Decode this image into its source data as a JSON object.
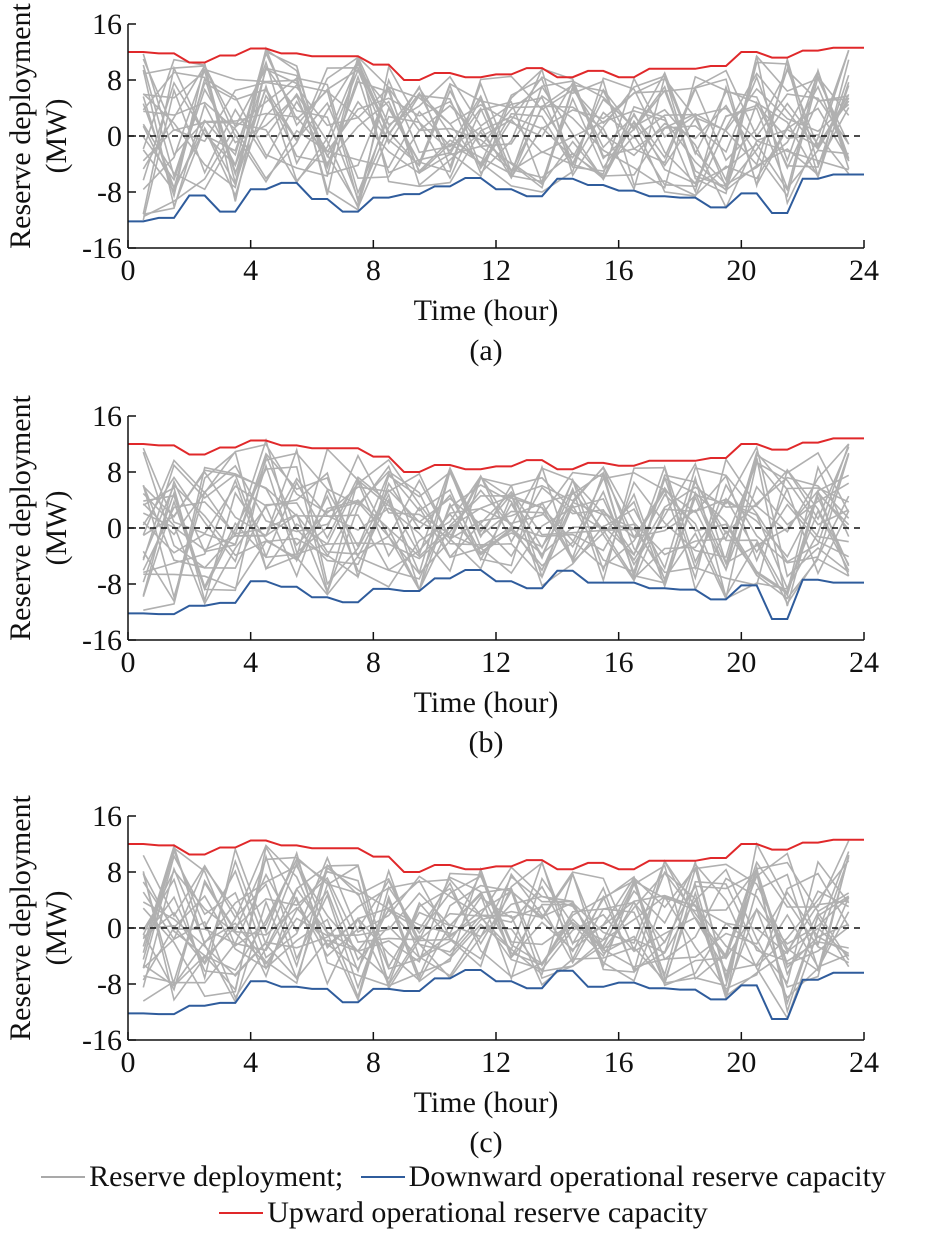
{
  "colors": {
    "deployment": "#b0b0b0",
    "downward": "#2f5c9c",
    "upward": "#e0282a",
    "zero_line": "#111111"
  },
  "legend": {
    "deployment_label": "Reserve deployment;",
    "downward_label": "Downward operational reserve capacity",
    "upward_label": "Upward operational reserve capacity"
  },
  "chart_data": [
    {
      "type": "line",
      "caption": "(a)",
      "xlabel": "Time (hour)",
      "ylabel_line1": "Reserve deployment",
      "ylabel_line2": "(MW)",
      "xlim": [
        0,
        24
      ],
      "ylim": [
        -16,
        16
      ],
      "xticks": [
        0,
        4,
        8,
        12,
        16,
        20,
        24
      ],
      "yticks": [
        -16,
        -8,
        0,
        8,
        16
      ],
      "upward_capacity": {
        "x": [
          0,
          0.5,
          1,
          1.5,
          2,
          2.5,
          3,
          3.5,
          4,
          4.5,
          5,
          5.5,
          6,
          6.5,
          7,
          7.5,
          8,
          8.5,
          9,
          9.5,
          10,
          10.5,
          11,
          11.5,
          12,
          12.5,
          13,
          13.5,
          14,
          14.5,
          15,
          15.5,
          16,
          16.5,
          17,
          17.5,
          18,
          18.5,
          19,
          19.5,
          20,
          20.5,
          21,
          21.5,
          22,
          22.5,
          23,
          23.5,
          24
        ],
        "y": [
          12,
          12,
          11.8,
          11.8,
          10.5,
          10.5,
          11.5,
          11.5,
          12.5,
          12.5,
          11.8,
          11.8,
          11.4,
          11.4,
          11.4,
          11.4,
          10.2,
          10.2,
          8,
          8,
          9,
          9,
          8.4,
          8.4,
          8.8,
          8.8,
          9.7,
          9.7,
          8.4,
          8.4,
          9.3,
          9.3,
          8.4,
          8.4,
          9.6,
          9.6,
          9.6,
          9.6,
          10,
          10,
          12,
          12,
          11.2,
          11.2,
          12.2,
          12.2,
          12.6,
          12.6,
          12.6
        ]
      },
      "downward_capacity": {
        "x": [
          0,
          0.5,
          1,
          1.5,
          2,
          2.5,
          3,
          3.5,
          4,
          4.5,
          5,
          5.5,
          6,
          6.5,
          7,
          7.5,
          8,
          8.5,
          9,
          9.5,
          10,
          10.5,
          11,
          11.5,
          12,
          12.5,
          13,
          13.5,
          14,
          14.5,
          15,
          15.5,
          16,
          16.5,
          17,
          17.5,
          18,
          18.5,
          19,
          19.5,
          20,
          20.5,
          21,
          21.5,
          22,
          22.5,
          23,
          23.5,
          24
        ],
        "y": [
          -12.2,
          -12.2,
          -11.7,
          -11.7,
          -8.5,
          -8.5,
          -10.8,
          -10.8,
          -7.6,
          -7.6,
          -6.7,
          -6.7,
          -9,
          -9,
          -10.8,
          -10.8,
          -8.8,
          -8.8,
          -8.3,
          -8.3,
          -7.2,
          -7.2,
          -6,
          -6,
          -7.6,
          -7.6,
          -8.6,
          -8.6,
          -6.1,
          -6.1,
          -7,
          -7,
          -7.8,
          -7.8,
          -8.6,
          -8.6,
          -8.8,
          -8.8,
          -10.2,
          -10.2,
          -8.2,
          -8.2,
          -11,
          -11,
          -6.1,
          -6.1,
          -5.5,
          -5.5,
          -5.5
        ]
      }
    },
    {
      "type": "line",
      "caption": "(b)",
      "xlabel": "Time (hour)",
      "ylabel_line1": "Reserve deployment",
      "ylabel_line2": "(MW)",
      "xlim": [
        0,
        24
      ],
      "ylim": [
        -16,
        16
      ],
      "xticks": [
        0,
        4,
        8,
        12,
        16,
        20,
        24
      ],
      "yticks": [
        -16,
        -8,
        0,
        8,
        16
      ],
      "upward_capacity": {
        "x": [
          0,
          0.5,
          1,
          1.5,
          2,
          2.5,
          3,
          3.5,
          4,
          4.5,
          5,
          5.5,
          6,
          6.5,
          7,
          7.5,
          8,
          8.5,
          9,
          9.5,
          10,
          10.5,
          11,
          11.5,
          12,
          12.5,
          13,
          13.5,
          14,
          14.5,
          15,
          15.5,
          16,
          16.5,
          17,
          17.5,
          18,
          18.5,
          19,
          19.5,
          20,
          20.5,
          21,
          21.5,
          22,
          22.5,
          23,
          23.5,
          24
        ],
        "y": [
          12,
          12,
          11.8,
          11.8,
          10.5,
          10.5,
          11.5,
          11.5,
          12.5,
          12.5,
          11.8,
          11.8,
          11.4,
          11.4,
          11.4,
          11.4,
          10.2,
          10.2,
          8,
          8,
          9,
          9,
          8.4,
          8.4,
          8.8,
          8.8,
          9.7,
          9.7,
          8.4,
          8.4,
          9.3,
          9.3,
          8.9,
          8.9,
          9.6,
          9.6,
          9.6,
          9.6,
          10,
          10,
          12,
          12,
          11.2,
          11.2,
          12.2,
          12.2,
          12.8,
          12.8,
          12.8
        ]
      },
      "downward_capacity": {
        "x": [
          0,
          0.5,
          1,
          1.5,
          2,
          2.5,
          3,
          3.5,
          4,
          4.5,
          5,
          5.5,
          6,
          6.5,
          7,
          7.5,
          8,
          8.5,
          9,
          9.5,
          10,
          10.5,
          11,
          11.5,
          12,
          12.5,
          13,
          13.5,
          14,
          14.5,
          15,
          15.5,
          16,
          16.5,
          17,
          17.5,
          18,
          18.5,
          19,
          19.5,
          20,
          20.5,
          21,
          21.5,
          22,
          22.5,
          23,
          23.5,
          24
        ],
        "y": [
          -12.2,
          -12.2,
          -12.3,
          -12.3,
          -11.1,
          -11.1,
          -10.7,
          -10.7,
          -7.6,
          -7.6,
          -8.4,
          -8.4,
          -9.9,
          -9.9,
          -10.6,
          -10.6,
          -8.7,
          -8.7,
          -9,
          -9,
          -7.2,
          -7.2,
          -6,
          -6,
          -7.6,
          -7.6,
          -8.6,
          -8.6,
          -6.1,
          -6.1,
          -7.8,
          -7.8,
          -7.8,
          -7.8,
          -8.6,
          -8.6,
          -8.8,
          -8.8,
          -10.2,
          -10.2,
          -8.2,
          -8.2,
          -13,
          -13,
          -7.4,
          -7.4,
          -7.8,
          -7.8,
          -7.8
        ]
      }
    },
    {
      "type": "line",
      "caption": "(c)",
      "xlabel": "Time (hour)",
      "ylabel_line1": "Reserve deployment",
      "ylabel_line2": "(MW)",
      "xlim": [
        0,
        24
      ],
      "ylim": [
        -16,
        16
      ],
      "xticks": [
        0,
        4,
        8,
        12,
        16,
        20,
        24
      ],
      "yticks": [
        -16,
        -8,
        0,
        8,
        16
      ],
      "upward_capacity": {
        "x": [
          0,
          0.5,
          1,
          1.5,
          2,
          2.5,
          3,
          3.5,
          4,
          4.5,
          5,
          5.5,
          6,
          6.5,
          7,
          7.5,
          8,
          8.5,
          9,
          9.5,
          10,
          10.5,
          11,
          11.5,
          12,
          12.5,
          13,
          13.5,
          14,
          14.5,
          15,
          15.5,
          16,
          16.5,
          17,
          17.5,
          18,
          18.5,
          19,
          19.5,
          20,
          20.5,
          21,
          21.5,
          22,
          22.5,
          23,
          23.5,
          24
        ],
        "y": [
          12,
          12,
          11.8,
          11.8,
          10.5,
          10.5,
          11.5,
          11.5,
          12.5,
          12.5,
          11.8,
          11.8,
          11.4,
          11.4,
          11.4,
          11.4,
          10.2,
          10.2,
          8,
          8,
          9,
          9,
          8.4,
          8.4,
          8.8,
          8.8,
          9.7,
          9.7,
          8.4,
          8.4,
          9.3,
          9.3,
          8.4,
          8.4,
          9.6,
          9.6,
          9.6,
          9.6,
          10,
          10,
          12,
          12,
          11.2,
          11.2,
          12.2,
          12.2,
          12.6,
          12.6,
          12.6
        ]
      },
      "downward_capacity": {
        "x": [
          0,
          0.5,
          1,
          1.5,
          2,
          2.5,
          3,
          3.5,
          4,
          4.5,
          5,
          5.5,
          6,
          6.5,
          7,
          7.5,
          8,
          8.5,
          9,
          9.5,
          10,
          10.5,
          11,
          11.5,
          12,
          12.5,
          13,
          13.5,
          14,
          14.5,
          15,
          15.5,
          16,
          16.5,
          17,
          17.5,
          18,
          18.5,
          19,
          19.5,
          20,
          20.5,
          21,
          21.5,
          22,
          22.5,
          23,
          23.5,
          24
        ],
        "y": [
          -12.2,
          -12.2,
          -12.3,
          -12.3,
          -11.1,
          -11.1,
          -10.7,
          -10.7,
          -7.6,
          -7.6,
          -8.4,
          -8.4,
          -8.7,
          -8.7,
          -10.6,
          -10.6,
          -8.7,
          -8.7,
          -9,
          -9,
          -7.2,
          -7.2,
          -6,
          -6,
          -7.6,
          -7.6,
          -8.6,
          -8.6,
          -6.1,
          -6.1,
          -8.4,
          -8.4,
          -7.8,
          -7.8,
          -8.6,
          -8.6,
          -8.8,
          -8.8,
          -10.2,
          -10.2,
          -8.2,
          -8.2,
          -13,
          -13,
          -7.4,
          -7.4,
          -6.4,
          -6.4,
          -6.4
        ]
      }
    }
  ]
}
